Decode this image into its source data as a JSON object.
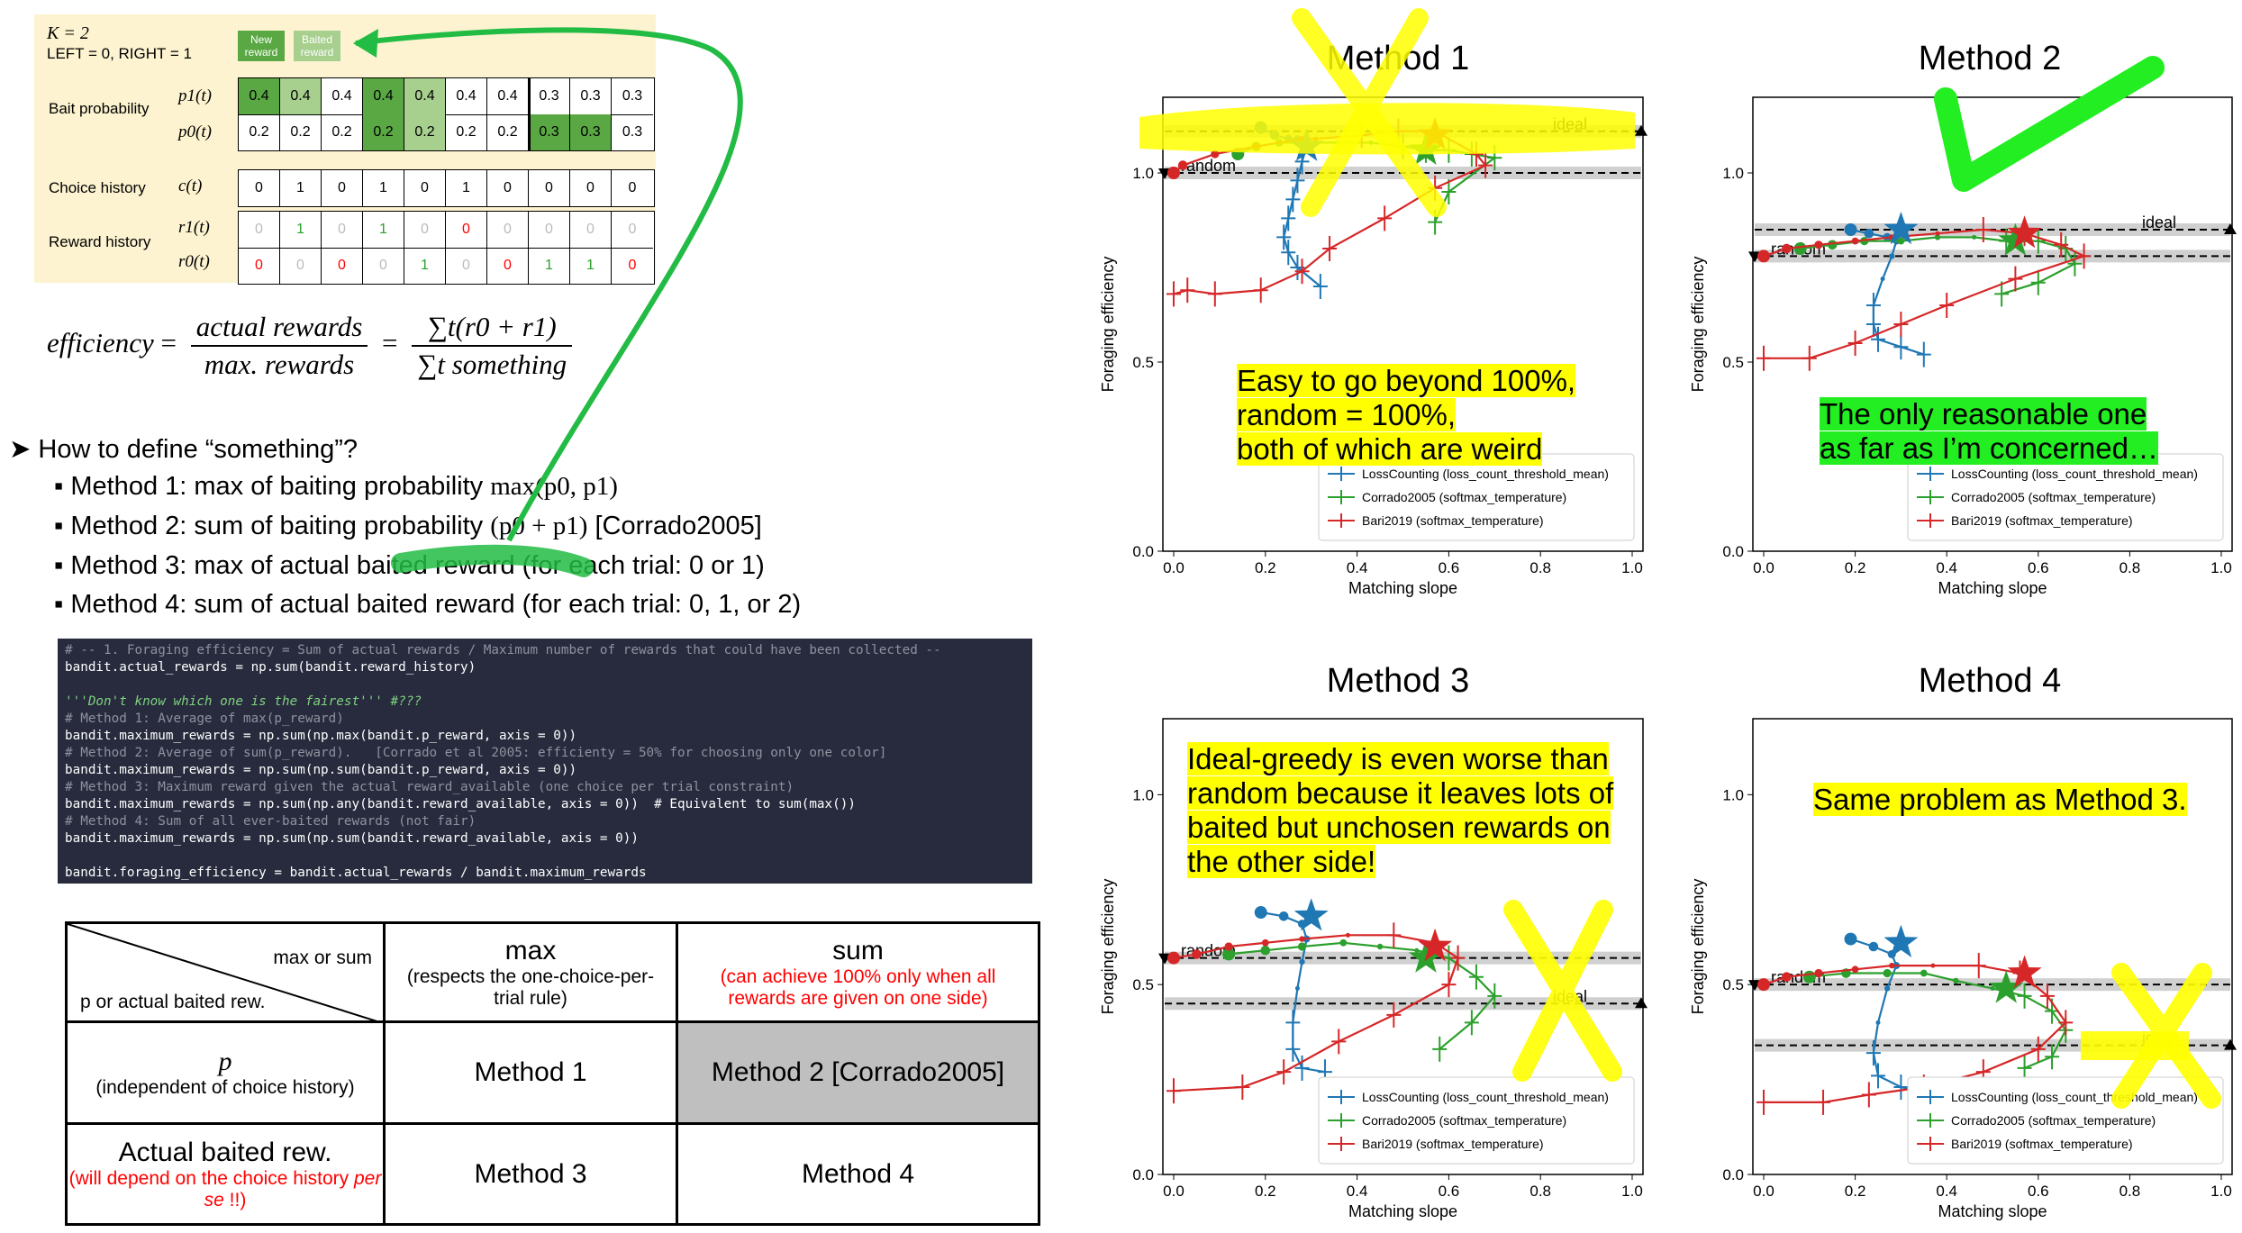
{
  "bait_panel": {
    "k_label": "K = 2",
    "choice_label": "LEFT = 0, RIGHT = 1",
    "legend": [
      {
        "label": "New reward",
        "color": "#5aa843"
      },
      {
        "label": "Baited reward",
        "color": "#a7cf8e"
      }
    ],
    "rows": [
      {
        "group": "Bait probability",
        "symbol": "p1(t)",
        "values": [
          "0.4",
          "0.4",
          "0.4",
          "0.4",
          "0.4",
          "0.4",
          "0.4",
          "0.3",
          "0.3",
          "0.3"
        ]
      },
      {
        "group": "",
        "symbol": "p0(t)",
        "values": [
          "0.2",
          "0.2",
          "0.2",
          "0.2",
          "0.2",
          "0.2",
          "0.2",
          "0.3",
          "0.3",
          "0.3"
        ]
      },
      {
        "group": "Choice history",
        "symbol": "c(t)",
        "values": [
          "0",
          "1",
          "0",
          "1",
          "0",
          "1",
          "0",
          "0",
          "0",
          "0"
        ]
      },
      {
        "group": "Reward history",
        "symbol": "r1(t)",
        "values": [
          "0",
          "1",
          "0",
          "1",
          "0",
          "0",
          "0",
          "0",
          "0",
          "0"
        ]
      },
      {
        "group": "",
        "symbol": "r0(t)",
        "values": [
          "0",
          "0",
          "0",
          "0",
          "1",
          "0",
          "0",
          "1",
          "1",
          "0"
        ]
      }
    ]
  },
  "formula": {
    "lhs": "efficiency",
    "num1": "actual rewards",
    "den1": "max. rewards",
    "num2": "∑t(r0 + r1)",
    "den2": "∑t something"
  },
  "bullets": {
    "question": "How to define “something”?",
    "items": [
      {
        "text": "Method 1: max of baiting probability ",
        "math": "max(p0, p1)",
        "extra": ""
      },
      {
        "text": "Method 2: sum of baiting probability ",
        "math": "(p0 + p1)",
        "extra": "  [Corrado2005]"
      },
      {
        "text": "Method 3: max of actual baited reward (for each trial: 0 or 1)",
        "math": "",
        "extra": ""
      },
      {
        "text": "Method 4: sum of actual baited reward (for each trial: 0, 1, or 2)",
        "math": "",
        "extra": ""
      }
    ]
  },
  "code_lines": [
    {
      "style": "comment",
      "text": "# -- 1. Foraging efficiency = Sum of actual rewards / Maximum number of rewards that could have been collected --"
    },
    {
      "style": "normal",
      "text": "bandit.actual_rewards = np.sum(bandit.reward_history)"
    },
    {
      "style": "normal",
      "text": ""
    },
    {
      "style": "doc",
      "text": "'''Don't know which one is the fairest''' #???"
    },
    {
      "style": "comment",
      "text": "# Method 1: Average of max(p_reward)"
    },
    {
      "style": "normal",
      "text": "bandit.maximum_rewards = np.sum(np.max(bandit.p_reward, axis = 0))"
    },
    {
      "style": "comment",
      "text": "# Method 2: Average of sum(p_reward).   [Corrado et al 2005: efficienty = 50% for choosing only one color]"
    },
    {
      "style": "normal",
      "text": "bandit.maximum_rewards = np.sum(np.sum(bandit.p_reward, axis = 0))"
    },
    {
      "style": "comment",
      "text": "# Method 3: Maximum reward given the actual reward_available (one choice per trial constraint)"
    },
    {
      "style": "normal",
      "text": "bandit.maximum_rewards = np.sum(np.any(bandit.reward_available, axis = 0))  # Equivalent to sum(max())"
    },
    {
      "style": "comment",
      "text": "# Method 4: Sum of all ever-baited rewards (not fair)"
    },
    {
      "style": "normal",
      "text": "bandit.maximum_rewards = np.sum(np.sum(bandit.reward_available, axis = 0))"
    },
    {
      "style": "normal",
      "text": ""
    },
    {
      "style": "normal",
      "text": "bandit.foraging_efficiency = bandit.actual_rewards / bandit.maximum_rewards"
    }
  ],
  "table": {
    "corner_top": "max or sum",
    "corner_bottom": "p or actual baited rew.",
    "col_max": "max",
    "col_max_sub": "(respects the one-choice-per-trial rule)",
    "col_sum": "sum",
    "col_sum_sub": "(can achieve 100% only when all rewards are given on one side)",
    "row_p": "p",
    "row_p_sub": "(independent of choice history)",
    "row_actual": "Actual baited rew.",
    "row_actual_sub_a": "(will depend on the choice history ",
    "row_actual_sub_em": "per se",
    "row_actual_sub_b": " !!)",
    "m1": "Method 1",
    "m2": "Method 2 [Corrado2005]",
    "m3": "Method 3",
    "m4": "Method 4",
    "highlight_color": "#bfbfbf"
  },
  "panels": [
    {
      "title": "Method 1",
      "note": [
        "Easy to go beyond 100%,",
        "random = 100%,",
        "both of which are weird"
      ],
      "note_color": "#ffff00"
    },
    {
      "title": "Method 2",
      "note": [
        "The only reasonable one",
        "as far as I’m concerned…"
      ],
      "note_color": "#22ee22"
    },
    {
      "title": "Method 3",
      "note": [
        "Ideal-greedy is even worse than",
        "random because it leaves lots of",
        "baited but unchosen rewards on",
        "the other side!"
      ],
      "note_color": "#ffff00"
    },
    {
      "title": "Method 4",
      "note": [
        "Same problem as Method 3."
      ],
      "note_color": "#ffff00"
    }
  ],
  "chart_data": [
    {
      "type": "line",
      "title": "Method 1",
      "xlabel": "Matching slope",
      "ylabel": "Foraging efficiency",
      "xlim": [
        0,
        1.0
      ],
      "ylim": [
        0,
        1.2
      ],
      "xticks": [
        "0.0",
        "0.2",
        "0.4",
        "0.6",
        "0.8",
        "1.0"
      ],
      "yticks": [
        "0.0",
        "0.5",
        "1.0"
      ],
      "hlines": [
        {
          "label": "ideal",
          "y": 1.11
        },
        {
          "label": "random",
          "y": 1.0
        }
      ],
      "series": [
        {
          "name": "LossCounting (loss_count_threshold_mean)",
          "color": "#1f77b4",
          "x": [
            0.19,
            0.22,
            0.25,
            0.27,
            0.28,
            0.29,
            0.28,
            0.27,
            0.26,
            0.25,
            0.24,
            0.25,
            0.27,
            0.32
          ],
          "y": [
            1.12,
            1.1,
            1.09,
            1.09,
            1.08,
            1.07,
            1.03,
            0.98,
            0.93,
            0.88,
            0.83,
            0.79,
            0.75,
            0.7
          ]
        },
        {
          "name": "Corrado2005 (softmax_temperature)",
          "color": "#2ca02c",
          "x": [
            0.14,
            0.18,
            0.23,
            0.29,
            0.36,
            0.43,
            0.5,
            0.55,
            0.6,
            0.65,
            0.7,
            0.6,
            0.57
          ],
          "y": [
            1.05,
            1.07,
            1.08,
            1.08,
            1.08,
            1.08,
            1.07,
            1.06,
            1.06,
            1.05,
            1.04,
            0.95,
            0.87
          ]
        },
        {
          "name": "Bari2019 (softmax_temperature)",
          "color": "#d62728",
          "x": [
            0.0,
            0.02,
            0.09,
            0.18,
            0.28,
            0.31,
            0.41,
            0.49,
            0.57,
            0.66,
            0.68,
            0.57,
            0.46,
            0.34,
            0.28,
            0.19,
            0.09,
            0.03,
            0.0
          ],
          "y": [
            1.0,
            1.02,
            1.05,
            1.07,
            1.09,
            1.09,
            1.1,
            1.11,
            1.11,
            1.05,
            1.02,
            0.96,
            0.88,
            0.8,
            0.74,
            0.69,
            0.68,
            0.69,
            0.68
          ]
        }
      ],
      "stars": [
        {
          "series": "LossCounting",
          "x": 0.29,
          "y": 1.07
        },
        {
          "series": "Corrado2005",
          "x": 0.55,
          "y": 1.06
        },
        {
          "series": "Bari2019",
          "x": 0.57,
          "y": 1.1
        }
      ]
    },
    {
      "type": "line",
      "title": "Method 2",
      "xlabel": "Matching slope",
      "ylabel": "Foraging efficiency",
      "xlim": [
        0,
        1.0
      ],
      "ylim": [
        0,
        1.2
      ],
      "xticks": [
        "0.0",
        "0.2",
        "0.4",
        "0.6",
        "0.8",
        "1.0"
      ],
      "yticks": [
        "0.0",
        "0.5",
        "1.0"
      ],
      "hlines": [
        {
          "label": "ideal",
          "y": 0.85
        },
        {
          "label": "random",
          "y": 0.78
        }
      ],
      "series": [
        {
          "name": "LossCounting (loss_count_threshold_mean)",
          "color": "#1f77b4",
          "x": [
            0.19,
            0.23,
            0.27,
            0.29,
            0.28,
            0.26,
            0.24,
            0.24,
            0.25,
            0.3,
            0.35
          ],
          "y": [
            0.85,
            0.84,
            0.83,
            0.82,
            0.78,
            0.72,
            0.65,
            0.6,
            0.56,
            0.54,
            0.52
          ]
        },
        {
          "name": "Corrado2005 (softmax_temperature)",
          "color": "#2ca02c",
          "x": [
            0.08,
            0.15,
            0.22,
            0.3,
            0.38,
            0.46,
            0.53,
            0.6,
            0.66,
            0.68,
            0.6,
            0.52
          ],
          "y": [
            0.8,
            0.81,
            0.82,
            0.82,
            0.83,
            0.83,
            0.82,
            0.82,
            0.8,
            0.76,
            0.71,
            0.68
          ]
        },
        {
          "name": "Bari2019 (softmax_temperature)",
          "color": "#d62728",
          "x": [
            0.0,
            0.05,
            0.12,
            0.2,
            0.28,
            0.38,
            0.48,
            0.57,
            0.65,
            0.7,
            0.55,
            0.4,
            0.3,
            0.2,
            0.1,
            0.0
          ],
          "y": [
            0.78,
            0.8,
            0.81,
            0.82,
            0.83,
            0.84,
            0.85,
            0.84,
            0.81,
            0.78,
            0.72,
            0.65,
            0.6,
            0.55,
            0.51,
            0.51
          ]
        }
      ],
      "stars": [
        {
          "series": "LossCounting",
          "x": 0.3,
          "y": 0.85
        },
        {
          "series": "Corrado2005",
          "x": 0.55,
          "y": 0.82
        },
        {
          "series": "Bari2019",
          "x": 0.57,
          "y": 0.84
        }
      ]
    },
    {
      "type": "line",
      "title": "Method 3",
      "xlabel": "Matching slope",
      "ylabel": "Foraging efficiency",
      "xlim": [
        0,
        1.0
      ],
      "ylim": [
        0,
        1.2
      ],
      "xticks": [
        "0.0",
        "0.2",
        "0.4",
        "0.6",
        "0.8",
        "1.0"
      ],
      "yticks": [
        "0.0",
        "0.5",
        "1.0"
      ],
      "hlines": [
        {
          "label": "random",
          "y": 0.57
        },
        {
          "label": "ideal",
          "y": 0.45
        }
      ],
      "series": [
        {
          "name": "LossCounting (loss_count_threshold_mean)",
          "color": "#1f77b4",
          "x": [
            0.19,
            0.24,
            0.28,
            0.29,
            0.28,
            0.27,
            0.26,
            0.26,
            0.28,
            0.33
          ],
          "y": [
            0.69,
            0.68,
            0.66,
            0.62,
            0.56,
            0.49,
            0.4,
            0.33,
            0.28,
            0.27
          ]
        },
        {
          "name": "Corrado2005 (softmax_temperature)",
          "color": "#2ca02c",
          "x": [
            0.12,
            0.2,
            0.28,
            0.37,
            0.45,
            0.53,
            0.6,
            0.66,
            0.7,
            0.65,
            0.58
          ],
          "y": [
            0.58,
            0.59,
            0.6,
            0.61,
            0.6,
            0.59,
            0.57,
            0.52,
            0.47,
            0.4,
            0.33
          ]
        },
        {
          "name": "Bari2019 (softmax_temperature)",
          "color": "#d62728",
          "x": [
            0.0,
            0.05,
            0.12,
            0.2,
            0.28,
            0.38,
            0.48,
            0.57,
            0.62,
            0.6,
            0.48,
            0.36,
            0.24,
            0.15,
            0.0
          ],
          "y": [
            0.57,
            0.58,
            0.6,
            0.61,
            0.62,
            0.63,
            0.63,
            0.61,
            0.57,
            0.5,
            0.42,
            0.35,
            0.27,
            0.23,
            0.22
          ]
        }
      ],
      "stars": [
        {
          "series": "LossCounting",
          "x": 0.3,
          "y": 0.68
        },
        {
          "series": "Corrado2005",
          "x": 0.55,
          "y": 0.57
        },
        {
          "series": "Bari2019",
          "x": 0.57,
          "y": 0.6
        }
      ]
    },
    {
      "type": "line",
      "title": "Method 4",
      "xlabel": "Matching slope",
      "ylabel": "Foraging efficiency",
      "xlim": [
        0,
        1.0
      ],
      "ylim": [
        0,
        1.2
      ],
      "xticks": [
        "0.0",
        "0.2",
        "0.4",
        "0.6",
        "0.8",
        "1.0"
      ],
      "yticks": [
        "0.0",
        "0.5",
        "1.0"
      ],
      "hlines": [
        {
          "label": "random",
          "y": 0.5
        },
        {
          "label": "ideal",
          "y": 0.34
        }
      ],
      "series": [
        {
          "name": "LossCounting (loss_count_threshold_mean)",
          "color": "#1f77b4",
          "x": [
            0.19,
            0.24,
            0.28,
            0.29,
            0.27,
            0.25,
            0.24,
            0.25,
            0.3,
            0.33
          ],
          "y": [
            0.62,
            0.6,
            0.58,
            0.55,
            0.49,
            0.4,
            0.32,
            0.26,
            0.23,
            0.22
          ]
        },
        {
          "name": "Corrado2005 (softmax_temperature)",
          "color": "#2ca02c",
          "x": [
            0.1,
            0.18,
            0.27,
            0.35,
            0.42,
            0.5,
            0.57,
            0.63,
            0.66,
            0.63,
            0.57
          ],
          "y": [
            0.52,
            0.53,
            0.53,
            0.53,
            0.51,
            0.49,
            0.47,
            0.43,
            0.38,
            0.31,
            0.28
          ]
        },
        {
          "name": "Bari2019 (softmax_temperature)",
          "color": "#d62728",
          "x": [
            0.0,
            0.05,
            0.12,
            0.2,
            0.28,
            0.37,
            0.47,
            0.56,
            0.62,
            0.66,
            0.6,
            0.48,
            0.35,
            0.23,
            0.13,
            0.0
          ],
          "y": [
            0.5,
            0.52,
            0.53,
            0.54,
            0.55,
            0.55,
            0.55,
            0.53,
            0.47,
            0.4,
            0.33,
            0.27,
            0.23,
            0.21,
            0.19,
            0.19
          ]
        }
      ],
      "stars": [
        {
          "series": "LossCounting",
          "x": 0.3,
          "y": 0.61
        },
        {
          "series": "Corrado2005",
          "x": 0.53,
          "y": 0.49
        },
        {
          "series": "Bari2019",
          "x": 0.57,
          "y": 0.53
        }
      ]
    }
  ]
}
